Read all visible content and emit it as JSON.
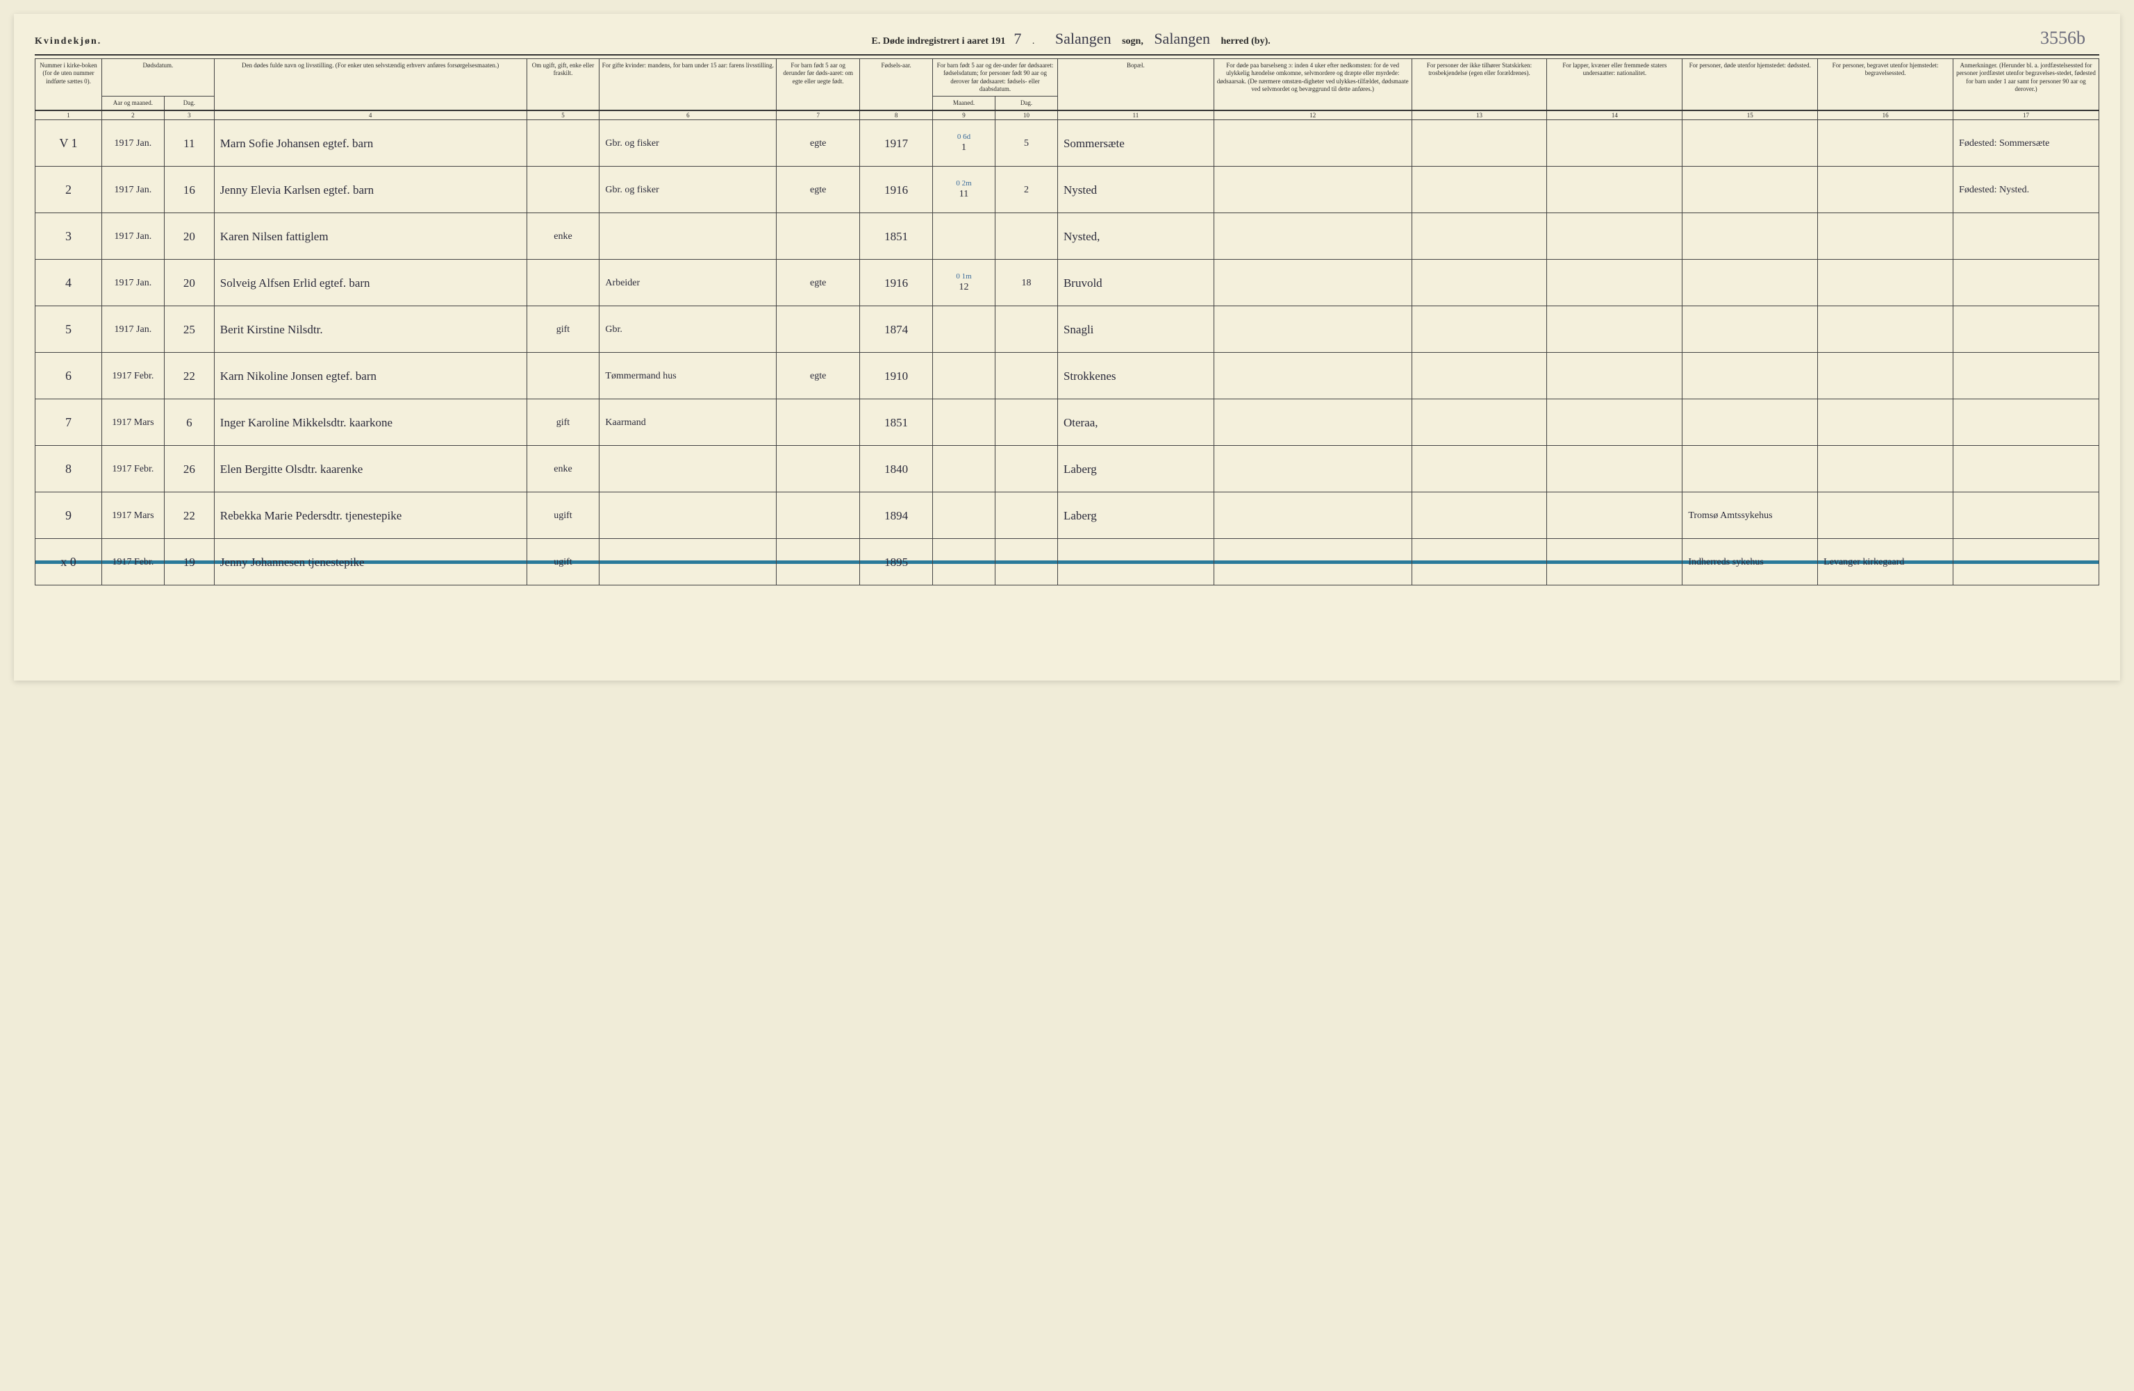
{
  "header": {
    "gender": "Kvindekjøn.",
    "title_prefix": "E.   Døde indregistrert i aaret 191",
    "year_digit": "7",
    "sogn_label": "sogn,",
    "sogn_value": "Salangen",
    "herred_label": "herred (by).",
    "herred_value": "Salangen",
    "page_number": "3556b"
  },
  "columns": {
    "c1": "Nummer i kirke-boken (for de uten nummer indførte sættes 0).",
    "c2a": "Dødsdatum.",
    "c2b": "Aar og maaned.",
    "c3": "Dag.",
    "c4": "Den dødes fulde navn og livsstilling. (For enker uten selvstændig erhverv anføres forsørgelsesmaaten.)",
    "c5": "Om ugift, gift, enke eller fraskilt.",
    "c6": "For gifte kvinder: mandens, for barn under 15 aar: farens livsstilling.",
    "c7": "For barn født 5 aar og derunder før døds-aaret: om egte eller uegte født.",
    "c8": "Fødsels-aar.",
    "c9_10_top": "For barn født 5 aar og der-under før dødsaaret: fødselsdatum; for personer født 90 aar og derover før dødsaaret: fødsels- eller daabsdatum.",
    "c9": "Maaned.",
    "c10": "Dag.",
    "c11": "Bopæl.",
    "c12": "For døde paa barselseng ɔ: inden 4 uker efter nedkomsten: for de ved ulykkelig hændelse omkomne, selvmordere og dræpte eller myrdede: dødsaarsak. (De nærmere omstæn-digheter ved ulykkes-tilfældet, dødsmaate ved selvmordet og bevæggrund til dette anføres.)",
    "c13": "For personer der ikke tilhører Statskirken: trosbekjendelse (egen eller forældrenes).",
    "c14": "For lapper, kvæner eller fremmede staters undersaatter: nationalitet.",
    "c15": "For personer, døde utenfor hjemstedet: dødssted.",
    "c16": "For personer, begravet utenfor hjemstedet: begravelsessted.",
    "c17": "Anmerkninger. (Herunder bl. a. jordfæstelsessted for personer jordfæstet utenfor begravelses-stedet, fødested for barn under 1 aar samt for personer 90 aar og derover.)"
  },
  "colnums": [
    "1",
    "2",
    "3",
    "4",
    "5",
    "6",
    "7",
    "8",
    "9",
    "10",
    "11",
    "12",
    "13",
    "14",
    "15",
    "16",
    "17"
  ],
  "rows": [
    {
      "mark": "V",
      "num": "1",
      "ym": "1917 Jan.",
      "day": "11",
      "name": "Marn Sofie Johansen egtef. barn",
      "status": "",
      "occupation": "Gbr. og fisker",
      "legit": "egte",
      "byear": "1917",
      "bm": "1",
      "bd": "5",
      "bm_note": "0 6d",
      "residence": "Sommersæte",
      "c15": "",
      "c16": "",
      "remarks": "Fødested: Sommersæte"
    },
    {
      "num": "2",
      "ym": "1917 Jan.",
      "day": "16",
      "name": "Jenny Elevia Karlsen egtef. barn",
      "status": "",
      "occupation": "Gbr. og fisker",
      "legit": "egte",
      "byear": "1916",
      "bm": "11",
      "bd": "2",
      "bm_note": "0 2m",
      "residence": "Nysted",
      "c15": "",
      "c16": "",
      "remarks": "Fødested: Nysted."
    },
    {
      "num": "3",
      "ym": "1917 Jan.",
      "day": "20",
      "name": "Karen Nilsen  fattiglem",
      "status": "enke",
      "occupation": "",
      "legit": "",
      "byear": "1851",
      "bm": "",
      "bd": "",
      "residence": "Nysted,",
      "c15": "",
      "c16": "",
      "remarks": ""
    },
    {
      "num": "4",
      "ym": "1917 Jan.",
      "day": "20",
      "name": "Solveig Alfsen Erlid egtef. barn",
      "status": "",
      "occupation": "Arbeider",
      "legit": "egte",
      "byear": "1916",
      "bm": "12",
      "bd": "18",
      "bm_note": "0 1m",
      "residence": "Bruvold",
      "c15": "",
      "c16": "",
      "remarks": ""
    },
    {
      "num": "5",
      "ym": "1917 Jan.",
      "day": "25",
      "name": "Berit Kirstine Nilsdtr.",
      "status": "gift",
      "occupation": "Gbr.",
      "legit": "",
      "byear": "1874",
      "bm": "",
      "bd": "",
      "residence": "Snagli",
      "c15": "",
      "c16": "",
      "remarks": ""
    },
    {
      "num": "6",
      "ym": "1917 Febr.",
      "day": "22",
      "name": "Karn Nikoline Jonsen egtef. barn",
      "status": "",
      "occupation": "Tømmermand hus",
      "legit": "egte",
      "byear": "1910",
      "bm": "",
      "bd": "",
      "residence": "Strokkenes",
      "c15": "",
      "c16": "",
      "remarks": ""
    },
    {
      "num": "7",
      "ym": "1917 Mars",
      "day": "6",
      "name": "Inger Karoline Mikkelsdtr. kaarkone",
      "status": "gift",
      "occupation": "Kaarmand",
      "legit": "",
      "byear": "1851",
      "bm": "",
      "bd": "",
      "residence": "Oteraa,",
      "c15": "",
      "c16": "",
      "remarks": ""
    },
    {
      "num": "8",
      "ym": "1917 Febr.",
      "day": "26",
      "name": "Elen Bergitte Olsdtr. kaarenke",
      "status": "enke",
      "occupation": "",
      "legit": "",
      "byear": "1840",
      "bm": "",
      "bd": "",
      "residence": "Laberg",
      "c15": "",
      "c16": "",
      "remarks": ""
    },
    {
      "num": "9",
      "ym": "1917 Mars",
      "day": "22",
      "name": "Rebekka Marie Pedersdtr. tjenestepike",
      "status": "ugift",
      "occupation": "",
      "legit": "",
      "byear": "1894",
      "bm": "",
      "bd": "",
      "residence": "Laberg",
      "c15": "Tromsø Amtssykehus",
      "c16": "",
      "remarks": ""
    },
    {
      "strike": true,
      "mark": "x",
      "num": "0",
      "ym": "1917 Febr.",
      "day": "19",
      "name": "Jenny Johannesen tjenestepike",
      "status": "ugift",
      "occupation": "",
      "legit": "",
      "byear": "1895",
      "bm": "",
      "bd": "",
      "residence": "",
      "c15": "Indherreds sykehus",
      "c16": "Levanger kirkegaard",
      "remarks": ""
    }
  ],
  "style": {
    "page_bg": "#f4f0dc",
    "line_color": "#333",
    "script_color": "#2a2a3a",
    "strike_color": "#2a7a9a",
    "header_font_size": 14,
    "cell_font_size": 10,
    "body_script_size": 17
  }
}
